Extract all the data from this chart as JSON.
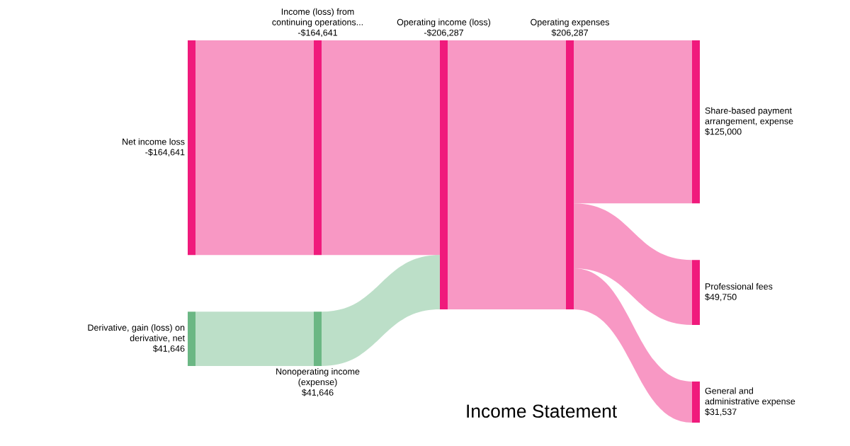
{
  "chart_data": {
    "type": "other",
    "title": "Income Statement",
    "categories": [
      "Net income loss",
      "Derivative, gain (loss) on\nderivative, net",
      "Income (loss) from\ncontinuing operations...",
      "Nonoperating income\n(expense)",
      "Operating income (loss)",
      "Operating expenses",
      "Share-based payment\narrangement, expense",
      "Professional fees",
      "General and\nadministrative expense"
    ],
    "values": [
      -164641,
      41646,
      -164641,
      41646,
      -206287,
      206287,
      125000,
      49750,
      31537
    ],
    "value_labels": [
      "-$164,641",
      "$41,646",
      "-$164,641",
      "$41,646",
      "-$206,287",
      "$206,287",
      "$125,000",
      "$49,750",
      "$31,537"
    ],
    "colors": [
      "#f01a7c",
      "#6bb784",
      "#f01a7c",
      "#6bb784",
      "#f01a7c",
      "#f01a7c",
      "#f01a7c",
      "#f01a7c",
      "#f01a7c"
    ]
  }
}
